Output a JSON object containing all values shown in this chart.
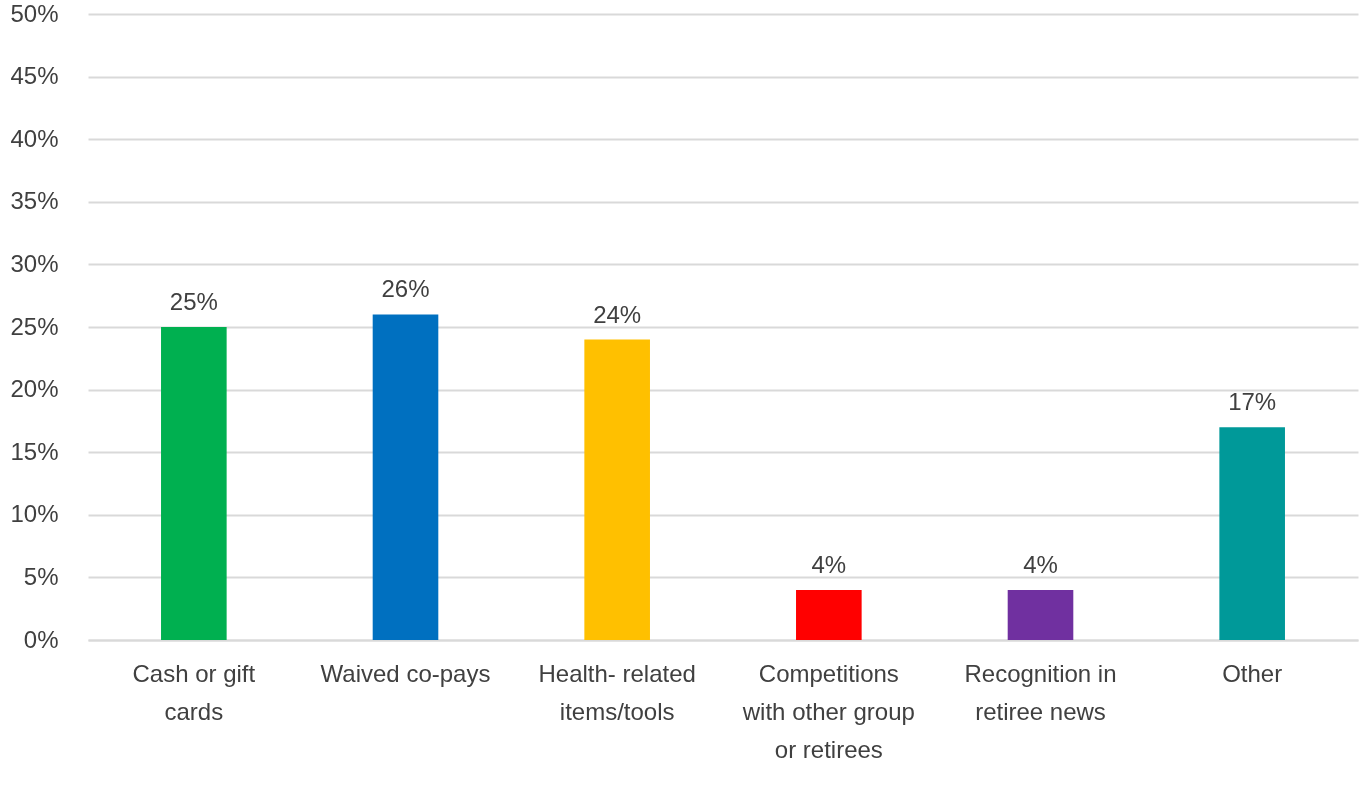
{
  "chart_data": {
    "type": "bar",
    "categories": [
      "Cash or gift cards",
      "Waived co-pays",
      "Health- related items/tools",
      "Competitions with other group or retirees",
      "Recognition in retiree news",
      "Other"
    ],
    "values": [
      25,
      26,
      24,
      4,
      4,
      17
    ],
    "value_labels": [
      "25%",
      "26%",
      "24%",
      "4%",
      "4%",
      "17%"
    ],
    "colors": [
      "#00b050",
      "#0070c0",
      "#ffc000",
      "#ff0000",
      "#7030a0",
      "#009999"
    ],
    "ylim": [
      0,
      50
    ],
    "yticks": [
      {
        "value": 0,
        "label": "0%"
      },
      {
        "value": 5,
        "label": "5%"
      },
      {
        "value": 10,
        "label": "10%"
      },
      {
        "value": 15,
        "label": "15%"
      },
      {
        "value": 20,
        "label": "20%"
      },
      {
        "value": 25,
        "label": "25%"
      },
      {
        "value": 30,
        "label": "30%"
      },
      {
        "value": 35,
        "label": "35%"
      },
      {
        "value": 40,
        "label": "40%"
      },
      {
        "value": 45,
        "label": "45%"
      },
      {
        "value": 50,
        "label": "50%"
      }
    ],
    "grid": "y"
  }
}
